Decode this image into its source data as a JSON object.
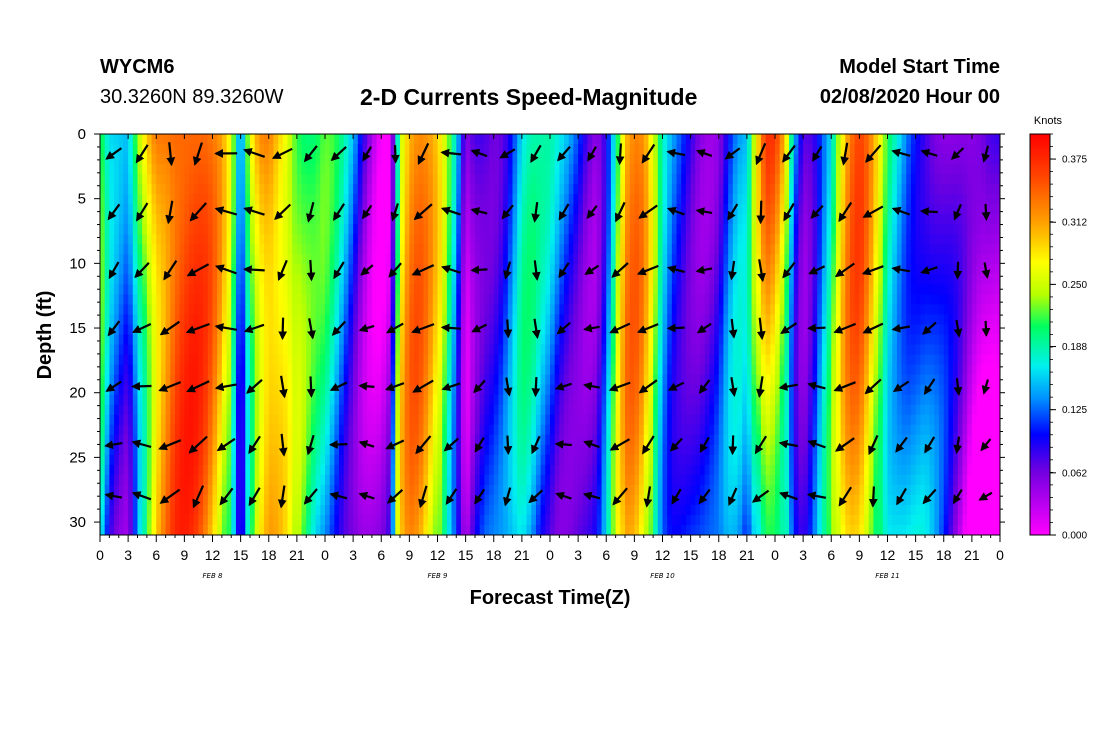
{
  "header": {
    "station": "WYCM6",
    "coords": "30.3260N 89.3260W",
    "title": "2-D Currents Speed-Magnitude",
    "model_start_label": "Model Start Time",
    "model_start_value": "02/08/2020 Hour 00"
  },
  "chart_data": {
    "type": "heatmap",
    "title": "2-D Currents Speed-Magnitude",
    "xlabel": "Forecast Time(Z)",
    "ylabel": "Depth (ft)",
    "x_tick_labels": [
      "0",
      "3",
      "6",
      "9",
      "12",
      "15",
      "18",
      "21",
      "0",
      "3",
      "6",
      "9",
      "12",
      "15",
      "18",
      "21",
      "0",
      "3",
      "6",
      "9",
      "12",
      "15",
      "18",
      "21",
      "0",
      "3",
      "6",
      "9",
      "12",
      "15",
      "18",
      "21",
      "0"
    ],
    "x_hours": [
      0,
      96
    ],
    "date_labels": [
      {
        "label": "FEB 8",
        "hour": 12
      },
      {
        "label": "FEB 9",
        "hour": 36
      },
      {
        "label": "FEB 10",
        "hour": 60
      },
      {
        "label": "FEB 11",
        "hour": 84
      }
    ],
    "y_tick_labels": [
      "0",
      "5",
      "10",
      "15",
      "20",
      "25",
      "30"
    ],
    "ylim": [
      0,
      31
    ],
    "y_inverted": true,
    "colorbar": {
      "label": "Knots",
      "ticks": [
        "0.375",
        "0.312",
        "0.250",
        "0.188",
        "0.125",
        "0.062",
        "0.000"
      ],
      "range": [
        0,
        0.4
      ]
    },
    "surface_speed_by_hour_knots": [
      [
        0,
        0.22
      ],
      [
        1,
        0.14
      ],
      [
        2,
        0.12
      ],
      [
        3,
        0.11
      ],
      [
        4,
        0.2
      ],
      [
        5,
        0.28
      ],
      [
        6,
        0.34
      ],
      [
        7,
        0.36
      ],
      [
        8,
        0.38
      ],
      [
        9,
        0.38
      ],
      [
        10,
        0.37
      ],
      [
        11,
        0.35
      ],
      [
        12,
        0.32
      ],
      [
        13,
        0.28
      ],
      [
        14,
        0.22
      ],
      [
        15,
        0.08
      ],
      [
        16,
        0.24
      ],
      [
        17,
        0.32
      ],
      [
        18,
        0.35
      ],
      [
        19,
        0.33
      ],
      [
        20,
        0.3
      ],
      [
        21,
        0.25
      ],
      [
        22,
        0.22
      ],
      [
        23,
        0.2
      ],
      [
        24,
        0.2
      ],
      [
        25,
        0.18
      ],
      [
        26,
        0.15
      ],
      [
        27,
        0.12
      ],
      [
        28,
        0.08
      ],
      [
        29,
        0.05
      ],
      [
        30,
        0.03
      ],
      [
        31,
        0.04
      ],
      [
        32,
        0.28
      ],
      [
        33,
        0.33
      ],
      [
        34,
        0.33
      ],
      [
        35,
        0.3
      ],
      [
        36,
        0.26
      ],
      [
        37,
        0.2
      ],
      [
        38,
        0.13
      ],
      [
        39,
        0.03
      ],
      [
        40,
        0.08
      ],
      [
        41,
        0.1
      ],
      [
        42,
        0.1
      ],
      [
        43,
        0.11
      ],
      [
        44,
        0.14
      ],
      [
        45,
        0.18
      ],
      [
        46,
        0.18
      ],
      [
        47,
        0.16
      ],
      [
        48,
        0.15
      ],
      [
        49,
        0.13
      ],
      [
        50,
        0.12
      ],
      [
        51,
        0.11
      ],
      [
        52,
        0.09
      ],
      [
        53,
        0.08
      ],
      [
        54,
        0.13
      ],
      [
        55,
        0.22
      ],
      [
        56,
        0.32
      ],
      [
        57,
        0.33
      ],
      [
        58,
        0.3
      ],
      [
        59,
        0.22
      ],
      [
        60,
        0.14
      ],
      [
        61,
        0.11
      ],
      [
        62,
        0.1
      ],
      [
        63,
        0.09
      ],
      [
        64,
        0.08
      ],
      [
        65,
        0.08
      ],
      [
        66,
        0.09
      ],
      [
        67,
        0.13
      ],
      [
        68,
        0.15
      ],
      [
        69,
        0.14
      ],
      [
        70,
        0.24
      ],
      [
        71,
        0.33
      ],
      [
        72,
        0.33
      ],
      [
        73,
        0.28
      ],
      [
        74,
        0.15
      ],
      [
        75,
        0.09
      ],
      [
        76,
        0.11
      ],
      [
        77,
        0.16
      ],
      [
        78,
        0.2
      ],
      [
        79,
        0.28
      ],
      [
        80,
        0.33
      ],
      [
        81,
        0.34
      ],
      [
        82,
        0.3
      ],
      [
        83,
        0.24
      ],
      [
        84,
        0.18
      ],
      [
        85,
        0.16
      ],
      [
        86,
        0.14
      ],
      [
        87,
        0.13
      ],
      [
        88,
        0.12
      ],
      [
        89,
        0.1
      ],
      [
        90,
        0.08
      ],
      [
        91,
        0.06
      ],
      [
        92,
        0.04
      ],
      [
        93,
        0.02
      ],
      [
        94,
        0.02
      ],
      [
        95,
        0.04
      ],
      [
        96,
        0.06
      ]
    ],
    "vector_directions": "current direction arrows at depths 1.5, 6, 10.5, 15, 19.5, 24, 28 ft every 3 forecast hours"
  }
}
